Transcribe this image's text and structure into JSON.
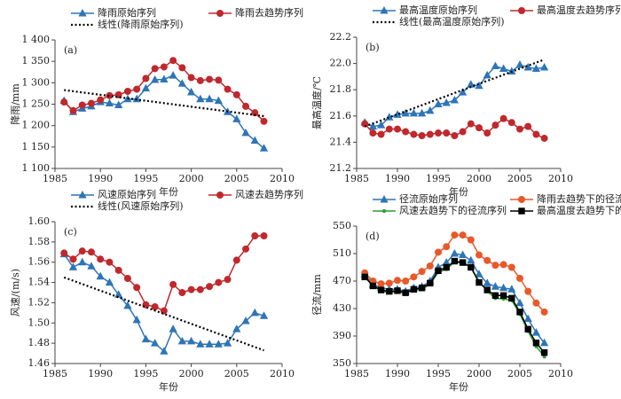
{
  "chart_data": [
    {
      "type": "line",
      "annotation": "(a)",
      "x_label": "年份",
      "y_label": "降雨/mm",
      "x": [
        1986,
        1987,
        1988,
        1989,
        1990,
        1991,
        1992,
        1993,
        1994,
        1995,
        1996,
        1997,
        1998,
        1999,
        2000,
        2001,
        2002,
        2003,
        2004,
        2005,
        2006,
        2007,
        2008
      ],
      "xlim": [
        1985,
        2010
      ],
      "xticks": [
        1985,
        1990,
        1995,
        2000,
        2005,
        2010
      ],
      "ylim": [
        1100,
        1400
      ],
      "yticks": [
        {
          "value": 1100,
          "label": "1 100"
        },
        {
          "value": 1150,
          "label": "1 150"
        },
        {
          "value": 1200,
          "label": "1 200"
        },
        {
          "value": 1250,
          "label": "1 250"
        },
        {
          "value": 1300,
          "label": "1 300"
        },
        {
          "value": 1350,
          "label": "1 350"
        },
        {
          "value": 1400,
          "label": "1 400"
        }
      ],
      "series": [
        {
          "name": "降雨原始序列",
          "color": "#2e75b6",
          "marker": "triangle",
          "values": [
            1258,
            1232,
            1240,
            1245,
            1255,
            1252,
            1248,
            1262,
            1262,
            1287,
            1307,
            1308,
            1317,
            1298,
            1278,
            1262,
            1262,
            1258,
            1232,
            1215,
            1183,
            1165,
            1147
          ]
        },
        {
          "name": "降雨去趋势序列",
          "color": "#c0282d",
          "marker": "circle",
          "values": [
            1255,
            1235,
            1248,
            1252,
            1260,
            1270,
            1272,
            1280,
            1285,
            1310,
            1333,
            1337,
            1352,
            1335,
            1312,
            1305,
            1308,
            1306,
            1285,
            1272,
            1245,
            1230,
            1210
          ]
        },
        {
          "name": "线性(降雨原始序列)",
          "color": "#000000",
          "marker": "none",
          "dash": true,
          "x": [
            1986,
            2008
          ],
          "values": [
            1283,
            1222
          ]
        }
      ]
    },
    {
      "type": "line",
      "annotation": "(b)",
      "x_label": "年份",
      "y_label": "最高温度/℃",
      "x": [
        1986,
        1987,
        1988,
        1989,
        1990,
        1991,
        1992,
        1993,
        1994,
        1995,
        1996,
        1997,
        1998,
        1999,
        2000,
        2001,
        2002,
        2003,
        2004,
        2005,
        2006,
        2007,
        2008
      ],
      "xlim": [
        1985,
        2010
      ],
      "xticks": [
        1985,
        1990,
        1995,
        2000,
        2005,
        2010
      ],
      "ylim": [
        21.2,
        22.2
      ],
      "yticks": [
        21.2,
        21.4,
        21.6,
        21.8,
        {
          "value": 22,
          "label": "22.0"
        },
        22.2
      ],
      "series": [
        {
          "name": "最高温度原始序列",
          "color": "#2e75b6",
          "marker": "triangle",
          "values": [
            21.55,
            21.52,
            21.53,
            21.59,
            21.61,
            21.62,
            21.62,
            21.62,
            21.64,
            21.69,
            21.7,
            21.72,
            21.78,
            21.84,
            21.83,
            21.91,
            21.98,
            21.96,
            21.94,
            21.99,
            21.97,
            21.96,
            21.97
          ]
        },
        {
          "name": "最高温度去趋势序列",
          "color": "#c0282d",
          "marker": "circle",
          "values": [
            21.54,
            21.47,
            21.46,
            21.5,
            21.5,
            21.48,
            21.46,
            21.45,
            21.46,
            21.47,
            21.47,
            21.45,
            21.48,
            21.54,
            21.51,
            21.47,
            21.53,
            21.58,
            21.55,
            21.5,
            21.52,
            21.46,
            21.43
          ]
        },
        {
          "name": "线性(最高温度原始序列)",
          "color": "#000000",
          "marker": "none",
          "dash": true,
          "x": [
            1986,
            2008
          ],
          "values": [
            21.52,
            22.03
          ]
        }
      ]
    },
    {
      "type": "line",
      "annotation": "(c)",
      "x_label": "年份",
      "y_label": "风速/(m/s)",
      "x": [
        1986,
        1987,
        1988,
        1989,
        1990,
        1991,
        1992,
        1993,
        1994,
        1995,
        1996,
        1997,
        1998,
        1999,
        2000,
        2001,
        2002,
        2003,
        2004,
        2005,
        2006,
        2007,
        2008
      ],
      "xlim": [
        1985,
        2010
      ],
      "xticks": [
        1985,
        1990,
        1995,
        2000,
        2005,
        2010
      ],
      "ylim": [
        1.46,
        1.6
      ],
      "yticks": [
        1.46,
        1.48,
        {
          "value": 1.5,
          "label": "1.50"
        },
        1.52,
        1.54,
        1.56,
        1.58,
        {
          "value": 1.6,
          "label": "1.60"
        }
      ],
      "series": [
        {
          "name": "风速原始序列",
          "color": "#2e75b6",
          "marker": "triangle",
          "values": [
            1.568,
            1.555,
            1.56,
            1.556,
            1.546,
            1.54,
            1.528,
            1.517,
            1.503,
            1.484,
            1.48,
            1.472,
            1.494,
            1.482,
            1.482,
            1.479,
            1.479,
            1.479,
            1.48,
            1.494,
            1.502,
            1.51,
            1.507
          ]
        },
        {
          "name": "风速去趋势序列",
          "color": "#c0282d",
          "marker": "circle",
          "values": [
            1.569,
            1.563,
            1.571,
            1.57,
            1.563,
            1.56,
            1.552,
            1.544,
            1.535,
            1.518,
            1.516,
            1.512,
            1.538,
            1.53,
            1.533,
            1.533,
            1.536,
            1.54,
            1.543,
            1.562,
            1.573,
            1.586,
            1.586
          ]
        },
        {
          "name": "线性(风速原始序列)",
          "color": "#000000",
          "marker": "none",
          "dash": true,
          "x": [
            1986,
            2008
          ],
          "values": [
            1.545,
            1.473
          ]
        }
      ]
    },
    {
      "type": "line",
      "annotation": "(d)",
      "x_label": "年份",
      "y_label": "径流/mm",
      "x": [
        1986,
        1987,
        1988,
        1989,
        1990,
        1991,
        1992,
        1993,
        1994,
        1995,
        1996,
        1997,
        1998,
        1999,
        2000,
        2001,
        2002,
        2003,
        2004,
        2005,
        2006,
        2007,
        2008
      ],
      "xlim": [
        1985,
        2010
      ],
      "xticks": [
        1985,
        1990,
        1995,
        2000,
        2005,
        2010
      ],
      "ylim": [
        350,
        550
      ],
      "yticks": [
        350,
        390,
        430,
        470,
        510,
        550
      ],
      "series": [
        {
          "name": "径流原始序列",
          "color": "#2e75b6",
          "marker": "triangle",
          "values": [
            480,
            465,
            460,
            458,
            458,
            455,
            460,
            462,
            470,
            490,
            497,
            510,
            508,
            500,
            480,
            467,
            462,
            460,
            458,
            438,
            415,
            395,
            380
          ]
        },
        {
          "name": "降雨去趋势下的径流序列",
          "color": "#e8582a",
          "marker": "circle",
          "values": [
            482,
            470,
            466,
            467,
            471,
            470,
            476,
            484,
            492,
            512,
            520,
            537,
            537,
            530,
            508,
            500,
            493,
            494,
            490,
            474,
            455,
            438,
            425
          ]
        },
        {
          "name": "风速去趋势下的径流序列",
          "color": "#2ca02c",
          "marker": "dot",
          "values": [
            478,
            462,
            456,
            453,
            455,
            452,
            457,
            458,
            465,
            483,
            487,
            498,
            496,
            490,
            470,
            455,
            445,
            444,
            442,
            422,
            397,
            375,
            360
          ]
        },
        {
          "name": "最高温度去趋势下的径流序列",
          "color": "#000000",
          "marker": "square",
          "values": [
            476,
            463,
            457,
            455,
            456,
            453,
            458,
            460,
            467,
            485,
            490,
            499,
            497,
            490,
            468,
            457,
            449,
            449,
            445,
            425,
            400,
            380,
            366
          ]
        }
      ]
    }
  ]
}
